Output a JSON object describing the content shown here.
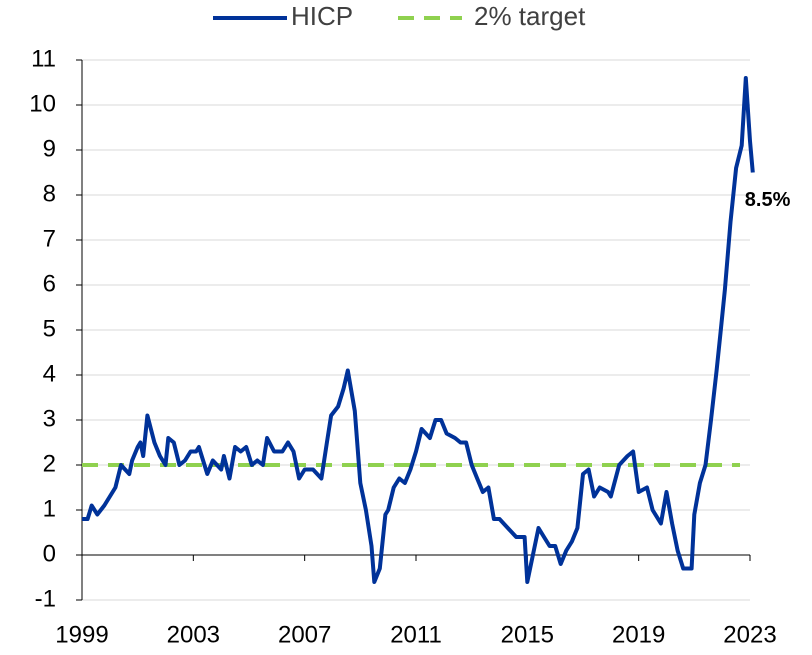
{
  "chart_data": {
    "type": "line",
    "x": [
      1999.0,
      1999.2,
      1999.35,
      1999.55,
      1999.8,
      2000.2,
      2000.4,
      2000.55,
      2000.7,
      2000.8,
      2001.0,
      2001.1,
      2001.2,
      2001.35,
      2001.6,
      2001.8,
      2002.0,
      2002.1,
      2002.3,
      2002.5,
      2002.7,
      2002.9,
      2003.1,
      2003.2,
      2003.5,
      2003.7,
      2004.0,
      2004.1,
      2004.3,
      2004.5,
      2004.7,
      2004.9,
      2005.1,
      2005.3,
      2005.5,
      2005.65,
      2005.9,
      2006.2,
      2006.4,
      2006.6,
      2006.8,
      2007.0,
      2007.3,
      2007.6,
      2007.8,
      2007.95,
      2008.2,
      2008.4,
      2008.55,
      2008.8,
      2009.0,
      2009.2,
      2009.4,
      2009.5,
      2009.7,
      2009.9,
      2010.0,
      2010.2,
      2010.4,
      2010.6,
      2010.8,
      2011.0,
      2011.2,
      2011.5,
      2011.7,
      2011.9,
      2012.1,
      2012.4,
      2012.6,
      2012.8,
      2013.0,
      2013.2,
      2013.4,
      2013.6,
      2013.8,
      2014.0,
      2014.3,
      2014.6,
      2014.9,
      2015.0,
      2015.2,
      2015.4,
      2015.6,
      2015.8,
      2016.0,
      2016.2,
      2016.4,
      2016.6,
      2016.8,
      2017.0,
      2017.2,
      2017.4,
      2017.6,
      2017.9,
      2018.0,
      2018.3,
      2018.6,
      2018.8,
      2019.0,
      2019.3,
      2019.5,
      2019.8,
      2020.0,
      2020.2,
      2020.4,
      2020.6,
      2020.9,
      2021.0,
      2021.2,
      2021.4,
      2021.6,
      2021.8,
      2021.95,
      2022.1,
      2022.3,
      2022.5,
      2022.7,
      2022.85,
      2023.0,
      2023.1
    ],
    "series": [
      {
        "name": "HICP",
        "color": "#003299",
        "values": [
          0.8,
          0.8,
          1.1,
          0.9,
          1.1,
          1.5,
          2.0,
          1.9,
          1.8,
          2.1,
          2.4,
          2.5,
          2.2,
          3.1,
          2.5,
          2.2,
          2.0,
          2.6,
          2.5,
          2.0,
          2.1,
          2.3,
          2.3,
          2.4,
          1.8,
          2.1,
          1.9,
          2.2,
          1.7,
          2.4,
          2.3,
          2.4,
          2.0,
          2.1,
          2.0,
          2.6,
          2.3,
          2.3,
          2.5,
          2.3,
          1.7,
          1.9,
          1.9,
          1.7,
          2.5,
          3.1,
          3.3,
          3.7,
          4.1,
          3.2,
          1.6,
          1.0,
          0.2,
          -0.6,
          -0.3,
          0.9,
          1.0,
          1.5,
          1.7,
          1.6,
          1.9,
          2.3,
          2.8,
          2.6,
          3.0,
          3.0,
          2.7,
          2.6,
          2.5,
          2.5,
          2.0,
          1.7,
          1.4,
          1.5,
          0.8,
          0.8,
          0.6,
          0.4,
          0.4,
          -0.6,
          0.0,
          0.6,
          0.4,
          0.2,
          0.2,
          -0.2,
          0.1,
          0.3,
          0.6,
          1.8,
          1.9,
          1.3,
          1.5,
          1.4,
          1.3,
          2.0,
          2.2,
          2.3,
          1.4,
          1.5,
          1.0,
          0.7,
          1.4,
          0.7,
          0.1,
          -0.3,
          -0.3,
          0.9,
          1.6,
          2.0,
          3.0,
          4.1,
          5.0,
          5.9,
          7.4,
          8.6,
          9.1,
          10.6,
          9.2,
          8.5
        ],
        "value_labels": {
          "119": "8.5%"
        },
        "label_color": "#3c3c9c"
      }
    ],
    "target": {
      "name": "2% target",
      "value": 2,
      "color": "#8fd14f"
    },
    "xlim": [
      1999,
      2023
    ],
    "xticks": [
      1999,
      2003,
      2007,
      2011,
      2015,
      2019,
      2023
    ],
    "ylim": [
      -1,
      11
    ],
    "yticks": [
      -1,
      0,
      1,
      2,
      3,
      4,
      5,
      6,
      7,
      8,
      9,
      10,
      11
    ],
    "grid": true,
    "legend": "top"
  }
}
